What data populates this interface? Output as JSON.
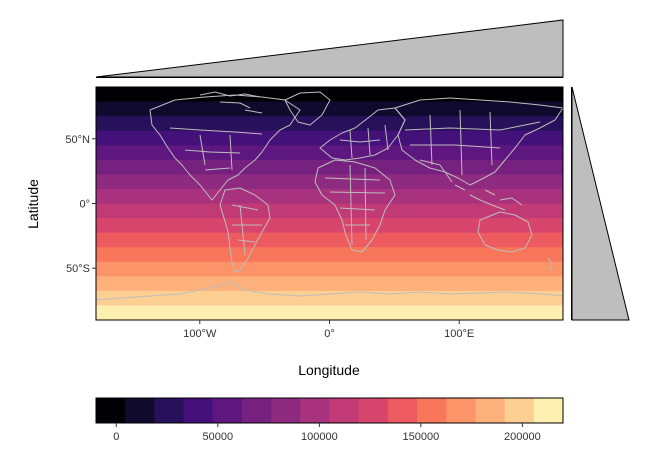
{
  "map": {
    "xlabel": "Longitude",
    "ylabel": "Latitude",
    "x_ticks": [
      {
        "lon": -100,
        "label": "100°W"
      },
      {
        "lon": 0,
        "label": "0°"
      },
      {
        "lon": 100,
        "label": "100°E"
      }
    ],
    "y_ticks": [
      {
        "lat": 50,
        "label": "50°N"
      },
      {
        "lat": 0,
        "label": "0°"
      },
      {
        "lat": -50,
        "label": "50°S"
      }
    ],
    "lon_range": [
      -180,
      180
    ],
    "lat_range": [
      -90,
      90
    ],
    "band_colors": [
      "#000004",
      "#0f0a2e",
      "#27115a",
      "#441079",
      "#5d177f",
      "#76207f",
      "#8e2a80",
      "#a8327d",
      "#c13a75",
      "#d8456c",
      "#ed5a5f",
      "#f87659",
      "#fd9368",
      "#feb17a",
      "#fecf92",
      "#fcefb0"
    ],
    "band_count": 16,
    "border_color": "#bdbdbd"
  },
  "colorbar": {
    "colors": [
      "#000004",
      "#0f0a2e",
      "#27115a",
      "#441079",
      "#5d177f",
      "#76207f",
      "#8e2a80",
      "#a8327d",
      "#c13a75",
      "#d8456c",
      "#ed5a5f",
      "#f87659",
      "#fd9368",
      "#feb17a",
      "#fecf92",
      "#fcefb0"
    ],
    "range": [
      -10000,
      220000
    ],
    "ticks": [
      {
        "value": 0,
        "label": "0"
      },
      {
        "value": 50000,
        "label": "50000"
      },
      {
        "value": 100000,
        "label": "100000"
      },
      {
        "value": 150000,
        "label": "150000"
      },
      {
        "value": 200000,
        "label": "200000"
      }
    ]
  },
  "marginals": {
    "fill": "#bebebe"
  }
}
